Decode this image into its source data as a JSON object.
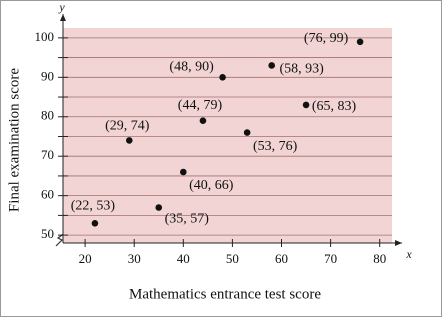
{
  "chart_data": {
    "type": "scatter",
    "x_label": "Mathematics entrance test score",
    "y_label": "Final examination score",
    "x_axis_name": "x",
    "y_axis_name": "y",
    "x": [
      22,
      29,
      35,
      40,
      44,
      48,
      53,
      58,
      65,
      76
    ],
    "values": [
      53,
      74,
      57,
      66,
      79,
      90,
      76,
      93,
      83,
      99
    ],
    "value_labels": [
      "(22, 53)",
      "(29, 74)",
      "(35, 57)",
      "(40, 66)",
      "(44, 79)",
      "(48, 90)",
      "(53, 76)",
      "(58, 93)",
      "(65, 83)",
      "(76, 99)"
    ],
    "color": "#111111",
    "background": "#f2d4d4",
    "grid_color": "#a07070",
    "xlim": [
      15.5,
      82.5
    ],
    "ylim": [
      48,
      102.5
    ],
    "xticks": [
      20,
      30,
      40,
      50,
      60,
      70,
      80
    ],
    "yticks": [
      50,
      60,
      70,
      80,
      90,
      100
    ],
    "y_minor_ticks": [
      55,
      65,
      75,
      85,
      95
    ],
    "grid": true
  }
}
